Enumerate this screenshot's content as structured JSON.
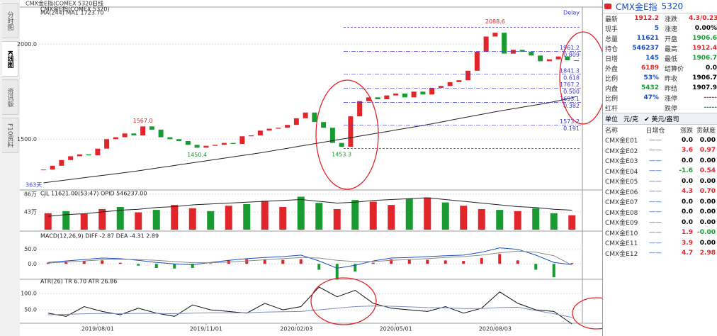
{
  "tabs": [
    "分时图",
    "K线图",
    "资讯版",
    "F10资料"
  ],
  "chart_data": [
    {
      "type": "candlestick",
      "title": "CMX金E指(COMEX 5320)",
      "period": "日线",
      "subtitle": "MA(244)  MA1 1723.70",
      "note": "Delay",
      "span_label": "363天",
      "categories": [
        null,
        null,
        null,
        null,
        null,
        null,
        "2019/08/01",
        null,
        null,
        null,
        null,
        null,
        null,
        null,
        null,
        null,
        null,
        null,
        "2019/11/01",
        null,
        null,
        null,
        null,
        null,
        null,
        null,
        null,
        null,
        "2020/02/03",
        null,
        null,
        null,
        null,
        null,
        null,
        null,
        null,
        null,
        null,
        "2020/05/01",
        null,
        null,
        null,
        null,
        null,
        null,
        null,
        null,
        null,
        null,
        "2020/08/03",
        null,
        null,
        null,
        null,
        null,
        null,
        null,
        null,
        null
      ],
      "series": [
        {
          "kind": "candle",
          "up_color": "#e0262b",
          "down_color": "#1a9b32",
          "values": [
            1340,
            1360,
            1390,
            1410,
            1420,
            1415,
            1450,
            1500,
            1510,
            1530,
            1520,
            1567,
            1550,
            1510,
            1500,
            1490,
            1470,
            1455,
            1465,
            1470,
            1480,
            1475,
            1515,
            1520,
            1545,
            1555,
            1560,
            1575,
            1610,
            1640,
            1590,
            1560,
            1480,
            1460,
            1620,
            1700,
            1720,
            1710,
            1730,
            1740,
            1720,
            1750,
            1735,
            1770,
            1780,
            1800,
            1810,
            1860,
            1960,
            2040,
            2060,
            1950,
            1970,
            1960,
            1940,
            1910,
            1920,
            1935,
            1915,
            1912
          ]
        },
        {
          "kind": "line",
          "color": "#222222",
          "values": [
            1270,
            1276,
            1282,
            1288,
            1294,
            1300,
            1306,
            1312,
            1318,
            1324,
            1330,
            1337,
            1344,
            1351,
            1358,
            1365,
            1372,
            1379,
            1386,
            1393,
            1400,
            1407,
            1414,
            1421,
            1428,
            1436,
            1444,
            1452,
            1460,
            1468,
            1476,
            1484,
            1492,
            1500,
            1508,
            1516,
            1524,
            1532,
            1540,
            1548,
            1556,
            1564,
            1572,
            1581,
            1590,
            1599,
            1608,
            1617,
            1626,
            1635,
            1644,
            1652,
            1660,
            1668,
            1676,
            1684,
            1692,
            1702,
            1712,
            1724
          ]
        }
      ],
      "ylim": [
        1240,
        2180
      ],
      "yticks": [
        {
          "value": 1500,
          "label": "1500.0"
        },
        {
          "value": 2000,
          "label": "2000.0"
        }
      ],
      "grid": true,
      "annotations": [
        {
          "value": 1567,
          "label": "1567.0"
        },
        1450.4,
        1453.3,
        2088.6
      ],
      "fib_levels": [
        {
          "price": 1961.2,
          "ratio": 0.809
        },
        {
          "price": 1841.3,
          "ratio": 0.618
        },
        {
          "price": 1767.2,
          "ratio": {
            "value": 0.5,
            "label": "0.500"
          }
        },
        {
          "price": 1693.1,
          "ratio": 0.382
        },
        {
          "price": 1573.2,
          "ratio": 0.191
        }
      ],
      "fib_color": "#3a3ad0"
    },
    {
      "type": "bar",
      "title": "CJL  11621.00(53:47)  OPID  546237.00",
      "series": [
        {
          "kind": "bar",
          "color": "#e0262b",
          "values": [
            40,
            null,
            38,
            50,
            null,
            42,
            null,
            60,
            52,
            null,
            58,
            null,
            70,
            55,
            null,
            null,
            50,
            null,
            68,
            60,
            null,
            78,
            null,
            58,
            50,
            null,
            45,
            null,
            null,
            35
          ]
        },
        {
          "kind": "bar",
          "color": "#1a9b32",
          "values": [
            null,
            45,
            null,
            null,
            55,
            null,
            48,
            null,
            null,
            45,
            null,
            62,
            null,
            null,
            80,
            65,
            null,
            72,
            null,
            null,
            75,
            null,
            66,
            null,
            null,
            48,
            null,
            52,
            40,
            null
          ]
        },
        {
          "kind": "line",
          "color": "#222222",
          "axis": "y2",
          "values": [
            55,
            57,
            58,
            60,
            62,
            63,
            65,
            66,
            68,
            69,
            70,
            71,
            72,
            73,
            74,
            72,
            70,
            71,
            73,
            74,
            75,
            76,
            74,
            72,
            70,
            68,
            66,
            65,
            63,
            62
          ]
        }
      ],
      "ylim": [
        0,
        86
      ],
      "yticks": [
        {
          "value": 86,
          "label": "86万"
        },
        {
          "value": 43,
          "label": "43万"
        }
      ],
      "y2lim": [
        40,
        80
      ],
      "grid": true
    },
    {
      "type": "bar",
      "title": "MACD(12,26,9)  DIFF -2.87  DEA -4.31  2.89",
      "series": [
        {
          "kind": "signbar",
          "up_color": "#e0262b",
          "down_color": "#1a9b32",
          "values": [
            4,
            8,
            10,
            12,
            4,
            -6,
            -14,
            -16,
            -14,
            2,
            12,
            16,
            16,
            14,
            16,
            -20,
            -54,
            -26,
            4,
            16,
            14,
            14,
            12,
            10,
            20,
            34,
            12,
            -20,
            -46,
            2.89
          ]
        },
        {
          "kind": "line",
          "color": "#1a4fbf",
          "values": [
            5,
            10,
            15,
            20,
            18,
            12,
            5,
            0,
            -3,
            5,
            12,
            18,
            22,
            25,
            30,
            10,
            -15,
            -5,
            10,
            20,
            22,
            25,
            28,
            30,
            40,
            55,
            50,
            30,
            5,
            -2.87
          ]
        },
        {
          "kind": "line",
          "color": "#8a8a8a",
          "values": [
            3,
            6,
            10,
            14,
            16,
            15,
            12,
            8,
            4,
            4,
            6,
            10,
            14,
            18,
            22,
            20,
            12,
            8,
            8,
            12,
            15,
            18,
            22,
            25,
            30,
            38,
            44,
            40,
            28,
            -4.31
          ]
        }
      ],
      "ylim": [
        -48,
        93
      ],
      "yticks": [
        {
          "value": 50,
          "label": "50.0"
        },
        {
          "value": 0,
          "label": "0.0"
        }
      ],
      "grid": true
    },
    {
      "type": "line",
      "title": "ATR(26)  TR 6.70  ATR 26.86",
      "series": [
        {
          "kind": "line",
          "color": "#111111",
          "values": [
            40,
            30,
            60,
            45,
            35,
            55,
            40,
            30,
            65,
            50,
            45,
            40,
            70,
            50,
            60,
            120,
            90,
            110,
            70,
            55,
            50,
            45,
            60,
            40,
            55,
            105,
            70,
            50,
            45,
            6.7
          ]
        },
        {
          "kind": "line",
          "color": "#7a8cc0",
          "values": [
            35,
            36,
            38,
            39,
            38,
            39,
            39,
            38,
            40,
            41,
            41,
            41,
            43,
            44,
            45,
            50,
            55,
            60,
            62,
            61,
            59,
            57,
            56,
            54,
            54,
            57,
            58,
            48,
            38,
            26.86
          ]
        }
      ],
      "ylim": [
        11,
        135
      ],
      "yticks": [
        {
          "value": 100,
          "label": "100.0"
        },
        {
          "value": 50,
          "label": "50.0"
        }
      ],
      "grid": true
    }
  ],
  "quote": {
    "title": "CMX金E指",
    "code": "5320",
    "rows": [
      [
        "最新",
        "1912.2",
        "涨跌",
        "4.3/0.23%"
      ],
      [
        "现手",
        "5",
        "涨速",
        "0.00%"
      ],
      [
        "总量",
        "11621",
        "开盘",
        "1906.6"
      ],
      [
        "持仓",
        "546237",
        "最高",
        "1912.4"
      ],
      [
        "日增",
        "145",
        "最低",
        "1906.7"
      ],
      [
        "外盘",
        "6189",
        "结算价",
        "0.0"
      ],
      [
        "比例",
        "53%",
        "昨收",
        "1906.7"
      ],
      [
        "内盘",
        "5432",
        "昨结",
        "1907.9"
      ],
      [
        "比例",
        "47%",
        "涨停",
        "-----"
      ],
      [
        "红杆",
        "",
        "跌停",
        "-----"
      ]
    ]
  },
  "units": {
    "label": "单位",
    "options": [
      "元/克",
      "✔ 美元/盎司"
    ]
  },
  "table": {
    "headers": [
      "名称",
      "日增仓",
      "涨跌",
      "贡献度"
    ],
    "rows": [
      [
        "CMX金E01",
        "——",
        "0.0",
        "0.00"
      ],
      [
        "CMX金E02",
        "——",
        "3.6",
        "0.97"
      ],
      [
        "CMX金E03",
        "——",
        "0.0",
        "0.00"
      ],
      [
        "CMX金E04",
        "——",
        "-1.6",
        "0.54"
      ],
      [
        "CMX金E05",
        "——",
        "0.0",
        "0.00"
      ],
      [
        "CMX金E06",
        "——",
        "4.3",
        "0.70"
      ],
      [
        "CMX金E07",
        "——",
        "0.0",
        "0.00"
      ],
      [
        "CMX金E08",
        "——",
        "0.0",
        "0.00"
      ],
      [
        "CMX金E09",
        "——",
        "0.0",
        "0.00"
      ],
      [
        "CMX金E10",
        "——",
        "1.9",
        "-0.00"
      ],
      [
        "CMX金E11",
        "——",
        "3.9",
        "0.00"
      ],
      [
        "CMX金E12",
        "——",
        "4.7",
        "2.98"
      ]
    ]
  }
}
